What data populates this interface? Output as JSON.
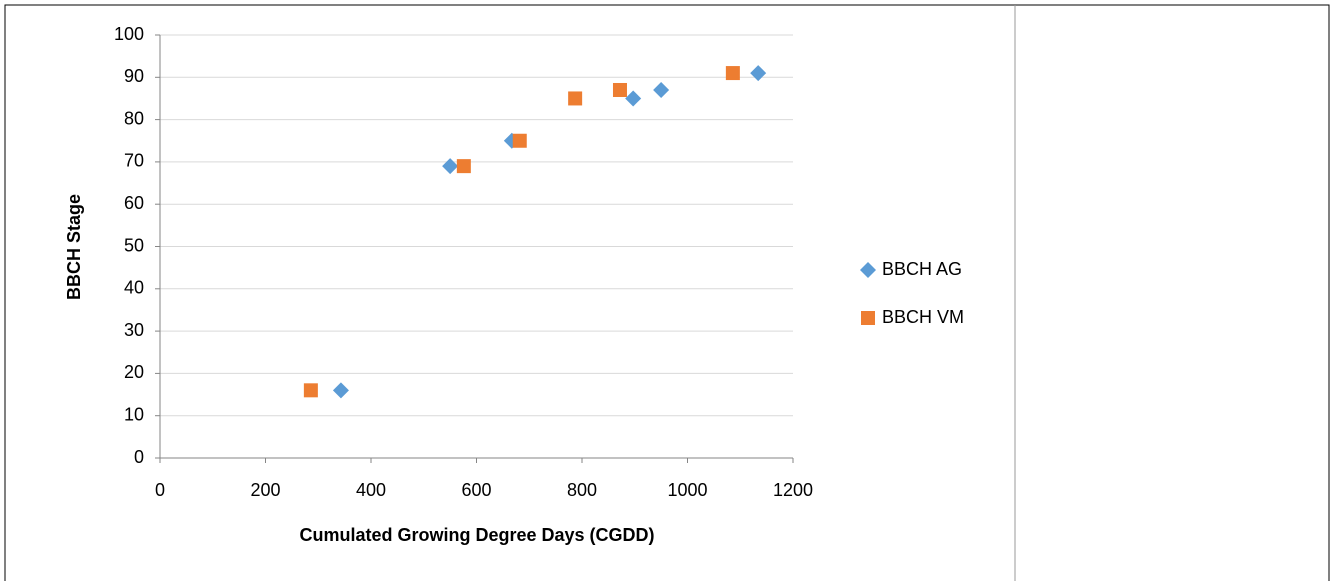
{
  "chart_data": {
    "type": "scatter",
    "x_label": "Cumulated Growing Degree Days (CGDD)",
    "y_label": "BBCH Stage",
    "xlim": [
      0,
      1200
    ],
    "xticks": [
      0,
      200,
      400,
      600,
      800,
      1000,
      1200
    ],
    "ylim": [
      0,
      100
    ],
    "yticks": [
      0,
      10,
      20,
      30,
      40,
      50,
      60,
      70,
      80,
      90,
      100
    ],
    "grid": true,
    "legend": "right",
    "series": [
      {
        "name": "BBCH AG",
        "color": "#5b9bd5",
        "marker": "diamond",
        "x": [
          343,
          550,
          667,
          897,
          950,
          1134
        ],
        "values": [
          16,
          69,
          75,
          85,
          87,
          91
        ]
      },
      {
        "name": "BBCH VM",
        "color": "#ed7d31",
        "marker": "square",
        "x": [
          286,
          576,
          682,
          787,
          872,
          1086
        ],
        "values": [
          16,
          69,
          75,
          85,
          87,
          91
        ]
      }
    ]
  }
}
